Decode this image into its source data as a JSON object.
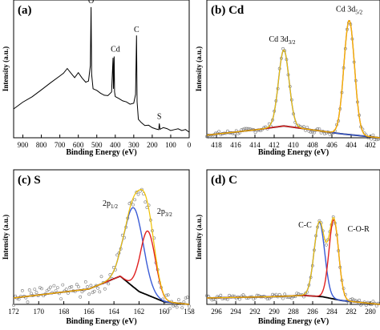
{
  "figure": {
    "panels": [
      {
        "id": "a",
        "label": "(a)",
        "xlabel": "Binding Energy (eV)",
        "ylabel": "Intensity (a.u.)",
        "xlim": [
          950,
          0
        ],
        "xticks": [
          "900",
          "800",
          "700",
          "600",
          "500",
          "400",
          "300",
          "200",
          "100",
          "0"
        ],
        "annotations": [
          "O",
          "Cd",
          "C",
          "S"
        ]
      },
      {
        "id": "b",
        "label": "(b) Cd",
        "xlabel": "Binding Energy (eV)",
        "ylabel": "Intensity (a.u.)",
        "xlim": [
          419,
          401
        ],
        "xticks": [
          "418",
          "416",
          "414",
          "412",
          "410",
          "408",
          "406",
          "404",
          "402"
        ],
        "annotations": [
          {
            "base": "Cd 3d",
            "sub": "3/2"
          },
          {
            "base": "Cd 3d",
            "sub": "5/2"
          }
        ]
      },
      {
        "id": "c",
        "label": "(c) S",
        "xlabel": "Binding Energy (eV)",
        "ylabel": "Intensity (a.u.)",
        "xlim": [
          172,
          158
        ],
        "xticks": [
          "172",
          "170",
          "168",
          "166",
          "164",
          "162",
          "160",
          "158"
        ],
        "annotations": [
          {
            "base": "2p",
            "sub": "1/2"
          },
          {
            "base": "2p",
            "sub": "3/2"
          }
        ]
      },
      {
        "id": "d",
        "label": "(d) C",
        "xlabel": "Binding Energy (eV)",
        "ylabel": "Intensity (a.u.)",
        "xlim": [
          297,
          279
        ],
        "xticks": [
          "296",
          "294",
          "292",
          "290",
          "288",
          "286",
          "284",
          "282",
          "280"
        ],
        "annotations": [
          "C-C",
          "C-O-R"
        ]
      }
    ]
  },
  "chart_data": [
    {
      "panel": "a",
      "type": "line",
      "title": "(a)",
      "xlabel": "Binding Energy (eV)",
      "ylabel": "Intensity (a.u.)",
      "xlim": [
        950,
        0
      ],
      "grid": false,
      "series": [
        {
          "x": [
            950,
            900,
            850,
            800,
            750,
            700,
            680,
            660,
            640,
            620,
            600,
            580,
            560,
            545,
            535,
            531,
            528,
            520,
            500,
            480,
            460,
            440,
            420,
            412,
            410,
            406,
            404,
            400,
            380,
            360,
            340,
            320,
            300,
            290,
            285,
            282,
            275,
            260,
            240,
            220,
            200,
            180,
            165,
            162,
            158,
            140,
            120,
            100,
            80,
            60,
            40,
            20,
            0
          ],
          "y": [
            0.22,
            0.27,
            0.32,
            0.37,
            0.42,
            0.47,
            0.5,
            0.52,
            0.49,
            0.46,
            0.5,
            0.45,
            0.42,
            0.44,
            0.55,
            1.0,
            0.48,
            0.38,
            0.36,
            0.34,
            0.33,
            0.33,
            0.34,
            0.6,
            0.38,
            0.62,
            0.34,
            0.32,
            0.3,
            0.28,
            0.27,
            0.26,
            0.27,
            0.32,
            0.78,
            0.28,
            0.14,
            0.12,
            0.1,
            0.09,
            0.08,
            0.07,
            0.07,
            0.1,
            0.07,
            0.07,
            0.07,
            0.06,
            0.06,
            0.07,
            0.05,
            0.06,
            0.05
          ]
        }
      ]
    },
    {
      "panel": "b",
      "type": "line",
      "title": "(b) Cd",
      "xlabel": "Binding Energy (eV)",
      "ylabel": "Intensity (a.u.)",
      "xlim": [
        419,
        401
      ],
      "peaks": [
        {
          "label": "Cd 3d3/2",
          "center": 411.0,
          "height": 0.58,
          "width": 0.55,
          "color": "#3a5bd6"
        },
        {
          "label": "Cd 3d5/2",
          "center": 404.2,
          "height": 0.87,
          "width": 0.55,
          "color": "#e02020"
        }
      ],
      "background": [
        [
          419,
          0.02
        ],
        [
          414,
          0.06
        ],
        [
          411,
          0.09
        ],
        [
          408,
          0.06
        ],
        [
          405,
          0.03
        ],
        [
          401,
          0.0
        ]
      ]
    },
    {
      "panel": "c",
      "type": "line",
      "title": "(c) S",
      "xlabel": "Binding Energy (eV)",
      "ylabel": "Intensity (a.u.)",
      "xlim": [
        172,
        158
      ],
      "peaks": [
        {
          "label": "2p1/2",
          "center": 162.4,
          "height": 0.62,
          "width": 0.75,
          "color": "#3a5bd6"
        },
        {
          "label": "2p3/2",
          "center": 161.3,
          "height": 0.5,
          "width": 0.6,
          "color": "#e02020"
        }
      ],
      "background": [
        [
          172,
          0.05
        ],
        [
          166,
          0.12
        ],
        [
          163.5,
          0.22
        ],
        [
          162,
          0.1
        ],
        [
          160,
          0.02
        ],
        [
          158,
          0.0
        ]
      ]
    },
    {
      "panel": "d",
      "type": "line",
      "title": "(d) C",
      "xlabel": "Binding Energy (eV)",
      "ylabel": "Intensity (a.u.)",
      "xlim": [
        297,
        279
      ],
      "peaks": [
        {
          "label": "C-C",
          "center": 285.3,
          "height": 0.58,
          "width": 0.55,
          "color": "#3a5bd6"
        },
        {
          "label": "C-O-R",
          "center": 283.8,
          "height": 0.62,
          "width": 0.5,
          "color": "#e02020"
        }
      ],
      "background": [
        [
          297,
          0.05
        ],
        [
          290,
          0.06
        ],
        [
          287,
          0.07
        ],
        [
          285,
          0.06
        ],
        [
          283,
          0.03
        ],
        [
          279,
          0.0
        ]
      ]
    }
  ],
  "colors": {
    "axis": "#000000",
    "raw_data": "#777777",
    "background_fit": "#000000",
    "envelope": "#f0c000",
    "peak_blue": "#3a5bd6",
    "peak_red": "#e02020"
  }
}
